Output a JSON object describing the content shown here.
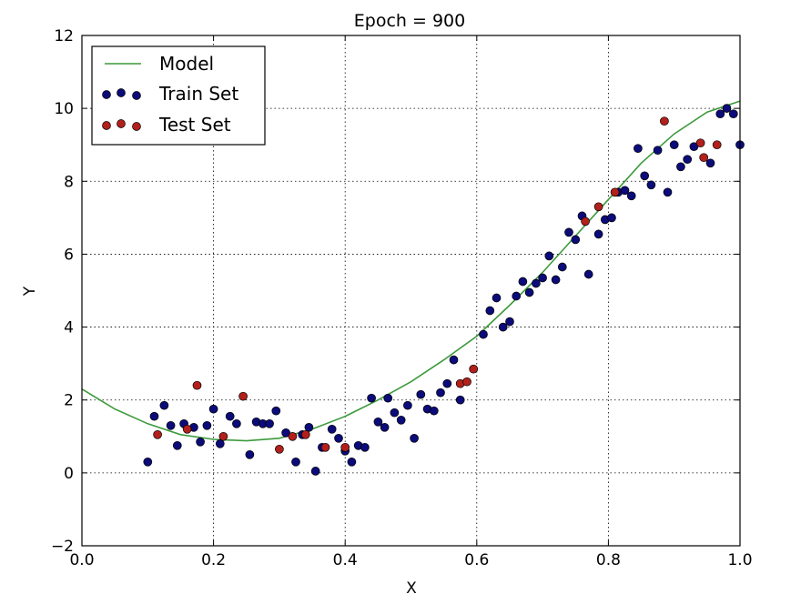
{
  "chart_data": {
    "type": "scatter",
    "title": "Epoch = 900",
    "xlabel": "X",
    "ylabel": "Y",
    "xlim": [
      0.0,
      1.0
    ],
    "ylim": [
      -2,
      12
    ],
    "grid": true,
    "legend_position": "top-left",
    "xticks": [
      0.0,
      0.2,
      0.4,
      0.6,
      0.8,
      1.0
    ],
    "xtick_labels": [
      "0.0",
      "0.2",
      "0.4",
      "0.6",
      "0.8",
      "1.0"
    ],
    "yticks": [
      -2,
      0,
      2,
      4,
      6,
      8,
      10,
      12
    ],
    "ytick_labels": [
      "−2",
      "0",
      "2",
      "4",
      "6",
      "8",
      "10",
      "12"
    ],
    "series": [
      {
        "name": "Model",
        "kind": "line",
        "color": "#3c9a3c",
        "x": [
          0.0,
          0.05,
          0.1,
          0.15,
          0.2,
          0.25,
          0.3,
          0.35,
          0.4,
          0.45,
          0.5,
          0.55,
          0.6,
          0.65,
          0.7,
          0.75,
          0.8,
          0.85,
          0.9,
          0.95,
          1.0
        ],
        "y": [
          2.3,
          1.75,
          1.35,
          1.05,
          0.92,
          0.88,
          0.95,
          1.2,
          1.55,
          2.0,
          2.5,
          3.1,
          3.75,
          4.6,
          5.5,
          6.5,
          7.5,
          8.5,
          9.3,
          9.9,
          10.2
        ]
      },
      {
        "name": "Train Set",
        "kind": "scatter",
        "color": "#0b0b7a",
        "x": [
          0.1,
          0.11,
          0.125,
          0.135,
          0.145,
          0.155,
          0.17,
          0.18,
          0.19,
          0.2,
          0.21,
          0.225,
          0.235,
          0.255,
          0.265,
          0.275,
          0.285,
          0.295,
          0.31,
          0.325,
          0.335,
          0.345,
          0.355,
          0.365,
          0.38,
          0.39,
          0.4,
          0.41,
          0.42,
          0.43,
          0.44,
          0.45,
          0.46,
          0.465,
          0.475,
          0.485,
          0.495,
          0.505,
          0.515,
          0.525,
          0.535,
          0.545,
          0.555,
          0.565,
          0.575,
          0.61,
          0.62,
          0.63,
          0.64,
          0.65,
          0.66,
          0.67,
          0.68,
          0.69,
          0.7,
          0.71,
          0.72,
          0.73,
          0.74,
          0.75,
          0.76,
          0.77,
          0.785,
          0.795,
          0.805,
          0.815,
          0.825,
          0.835,
          0.845,
          0.855,
          0.865,
          0.875,
          0.89,
          0.9,
          0.91,
          0.92,
          0.93,
          0.955,
          0.97,
          0.98,
          0.99,
          1.0
        ],
        "y": [
          0.3,
          1.55,
          1.85,
          1.3,
          0.75,
          1.35,
          1.25,
          0.85,
          1.3,
          1.75,
          0.8,
          1.55,
          1.35,
          0.5,
          1.4,
          1.35,
          1.35,
          1.7,
          1.1,
          0.3,
          1.05,
          1.25,
          0.05,
          0.7,
          1.2,
          0.95,
          0.6,
          0.3,
          0.75,
          0.7,
          2.05,
          1.4,
          1.25,
          2.05,
          1.65,
          1.45,
          1.85,
          0.95,
          2.15,
          1.75,
          1.7,
          2.2,
          2.45,
          3.1,
          2.0,
          3.8,
          4.45,
          4.8,
          4.0,
          4.15,
          4.85,
          5.25,
          4.95,
          5.2,
          5.35,
          5.95,
          5.3,
          5.65,
          6.6,
          6.4,
          7.05,
          5.45,
          6.55,
          6.95,
          7.0,
          7.7,
          7.75,
          7.6,
          8.9,
          8.15,
          7.9,
          8.85,
          7.7,
          9.0,
          8.4,
          8.6,
          8.95,
          8.5,
          9.85,
          10.0,
          9.85,
          9.0
        ]
      },
      {
        "name": "Test Set",
        "kind": "scatter",
        "color": "#b3201b",
        "x": [
          0.115,
          0.16,
          0.175,
          0.215,
          0.245,
          0.3,
          0.32,
          0.34,
          0.37,
          0.4,
          0.575,
          0.585,
          0.595,
          0.765,
          0.785,
          0.81,
          0.885,
          0.94,
          0.945,
          0.965
        ],
        "y": [
          1.05,
          1.2,
          2.4,
          1.0,
          2.1,
          0.65,
          1.0,
          1.05,
          0.7,
          0.7,
          2.45,
          2.5,
          2.85,
          6.9,
          7.3,
          7.7,
          9.65,
          9.05,
          8.65,
          9.0
        ]
      }
    ]
  }
}
